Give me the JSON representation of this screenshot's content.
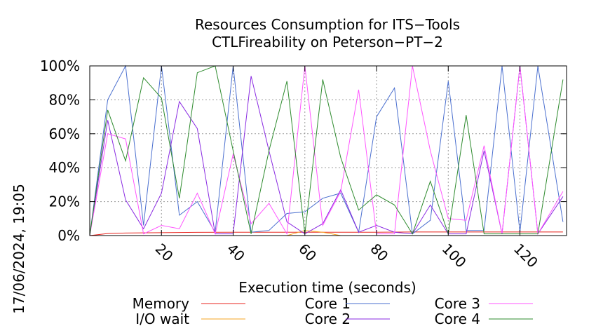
{
  "chart_data": {
    "type": "line",
    "title_line1": "Resources Consumption for ITS−Tools",
    "title_line2": "CTLFireability on Peterson−PT−2",
    "xlabel": "Execution time (seconds)",
    "ylabel": "",
    "timestamp": "17/06/2024, 19:05",
    "xlim": [
      0,
      133
    ],
    "ylim": [
      0,
      100
    ],
    "grid": true,
    "legend_position": "bottom",
    "x_ticks": [
      {
        "value": 20,
        "label": "20"
      },
      {
        "value": 40,
        "label": "40"
      },
      {
        "value": 60,
        "label": "60"
      },
      {
        "value": 80,
        "label": "80"
      },
      {
        "value": 100,
        "label": "100"
      },
      {
        "value": 120,
        "label": "120"
      }
    ],
    "y_ticks": [
      {
        "value": 0,
        "label": "0%"
      },
      {
        "value": 20,
        "label": "20%"
      },
      {
        "value": 40,
        "label": "40%"
      },
      {
        "value": 60,
        "label": "60%"
      },
      {
        "value": 80,
        "label": "80%"
      },
      {
        "value": 100,
        "label": "100%"
      }
    ],
    "series": [
      {
        "name": "Memory",
        "color": "#e8251f",
        "x": [
          0,
          5,
          10,
          20,
          30,
          40,
          50,
          60,
          70,
          80,
          90,
          100,
          110,
          120,
          132
        ],
        "y": [
          0,
          1.2,
          1.5,
          1.7,
          1.9,
          2.0,
          2.0,
          2.0,
          2.0,
          2.0,
          2.1,
          2.1,
          2.1,
          2.1,
          2.1
        ]
      },
      {
        "name": "I/O wait",
        "color": "#f5a623",
        "x": [
          0,
          5,
          10,
          20,
          30,
          40,
          50,
          55,
          60,
          65,
          70,
          80,
          90,
          100,
          110,
          120,
          132
        ],
        "y": [
          0,
          0,
          0,
          0,
          0,
          0,
          0,
          0,
          3,
          2,
          0,
          0,
          0,
          0,
          0,
          0,
          0
        ]
      },
      {
        "name": "Core 1",
        "color": "#4a6fcf",
        "x": [
          0,
          5,
          10,
          15,
          20,
          25,
          30,
          35,
          40,
          45,
          50,
          55,
          60,
          65,
          70,
          75,
          80,
          85,
          90,
          95,
          100,
          105,
          110,
          115,
          120,
          125,
          132
        ],
        "y": [
          0,
          80,
          100,
          6,
          100,
          12,
          20,
          2,
          100,
          2,
          3,
          13,
          14,
          22,
          25,
          2,
          70,
          87,
          1,
          9,
          91,
          3,
          3,
          100,
          2,
          100,
          8
        ]
      },
      {
        "name": "Core 2",
        "color": "#8a2be2",
        "x": [
          0,
          5,
          10,
          15,
          20,
          25,
          30,
          35,
          40,
          45,
          50,
          55,
          60,
          65,
          70,
          75,
          80,
          85,
          90,
          95,
          100,
          105,
          110,
          115,
          120,
          125,
          132
        ],
        "y": [
          0,
          68,
          21,
          4,
          25,
          79,
          63,
          1,
          1,
          94,
          50,
          8,
          1,
          7,
          27,
          2,
          6,
          2,
          1,
          18,
          1,
          1,
          50,
          1,
          100,
          1,
          23
        ]
      },
      {
        "name": "Core 3",
        "color": "#ff55ff",
        "x": [
          0,
          5,
          10,
          15,
          20,
          25,
          30,
          35,
          40,
          45,
          50,
          55,
          60,
          65,
          70,
          75,
          80,
          85,
          90,
          95,
          100,
          105,
          110,
          115,
          120,
          125,
          132
        ],
        "y": [
          0,
          60,
          57,
          1,
          6,
          4,
          25,
          1,
          48,
          7,
          19,
          1,
          100,
          6,
          26,
          86,
          1,
          1,
          100,
          50,
          10,
          9,
          53,
          1,
          100,
          1,
          26
        ]
      },
      {
        "name": "Core 4",
        "color": "#2e8b2e",
        "x": [
          0,
          5,
          10,
          15,
          20,
          25,
          30,
          35,
          40,
          45,
          50,
          55,
          60,
          65,
          70,
          75,
          80,
          85,
          90,
          95,
          100,
          105,
          110,
          115,
          120,
          125,
          132
        ],
        "y": [
          0,
          74,
          44,
          93,
          81,
          22,
          96,
          100,
          50,
          1,
          50,
          91,
          1,
          92,
          46,
          15,
          24,
          18,
          1,
          32,
          1,
          71,
          1,
          1,
          1,
          1,
          92
        ]
      }
    ]
  }
}
